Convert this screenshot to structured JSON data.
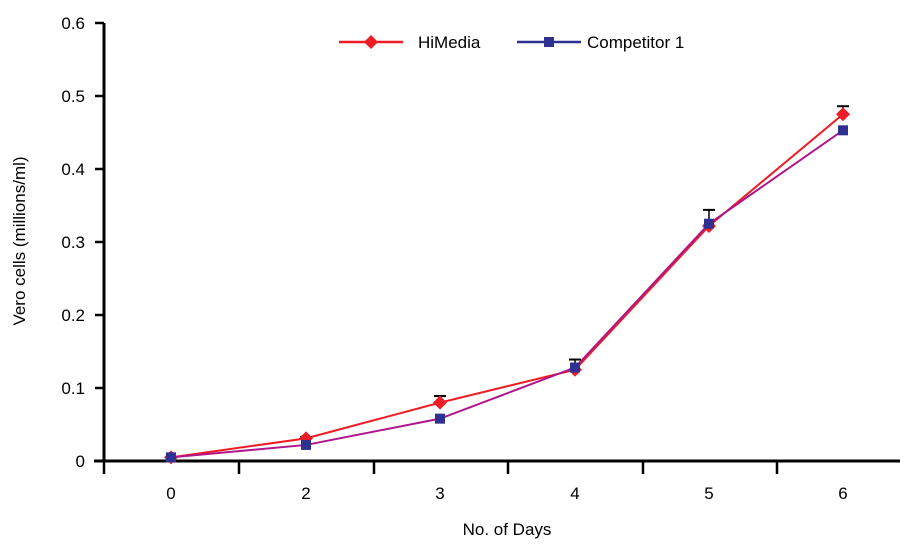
{
  "chart_data": {
    "type": "line",
    "title": "",
    "xlabel": "No. of Days",
    "ylabel": "Vero cells (millions/ml)",
    "categories": [
      "0",
      "2",
      "3",
      "4",
      "5",
      "6"
    ],
    "ylim": [
      0,
      0.6
    ],
    "yticks": [
      "0",
      "0.1",
      "0.2",
      "0.3",
      "0.4",
      "0.5",
      "0.6"
    ],
    "grid": false,
    "legend_position": "top-right",
    "series": [
      {
        "name": "HiMedia",
        "color": "#ee1c25",
        "marker": "diamond",
        "values": [
          0.005,
          0.031,
          0.08,
          0.125,
          0.322,
          0.475
        ],
        "error": [
          0.0,
          0.002,
          0.009,
          0.0,
          0.0,
          0.011
        ]
      },
      {
        "name": "Competitor 1",
        "color": "#2e3192",
        "line_color": "#b0168a",
        "marker": "square",
        "values": [
          0.005,
          0.022,
          0.058,
          0.128,
          0.325,
          0.453
        ],
        "error": [
          0.0,
          0.0,
          0.0,
          0.011,
          0.019,
          0.0
        ]
      }
    ]
  }
}
